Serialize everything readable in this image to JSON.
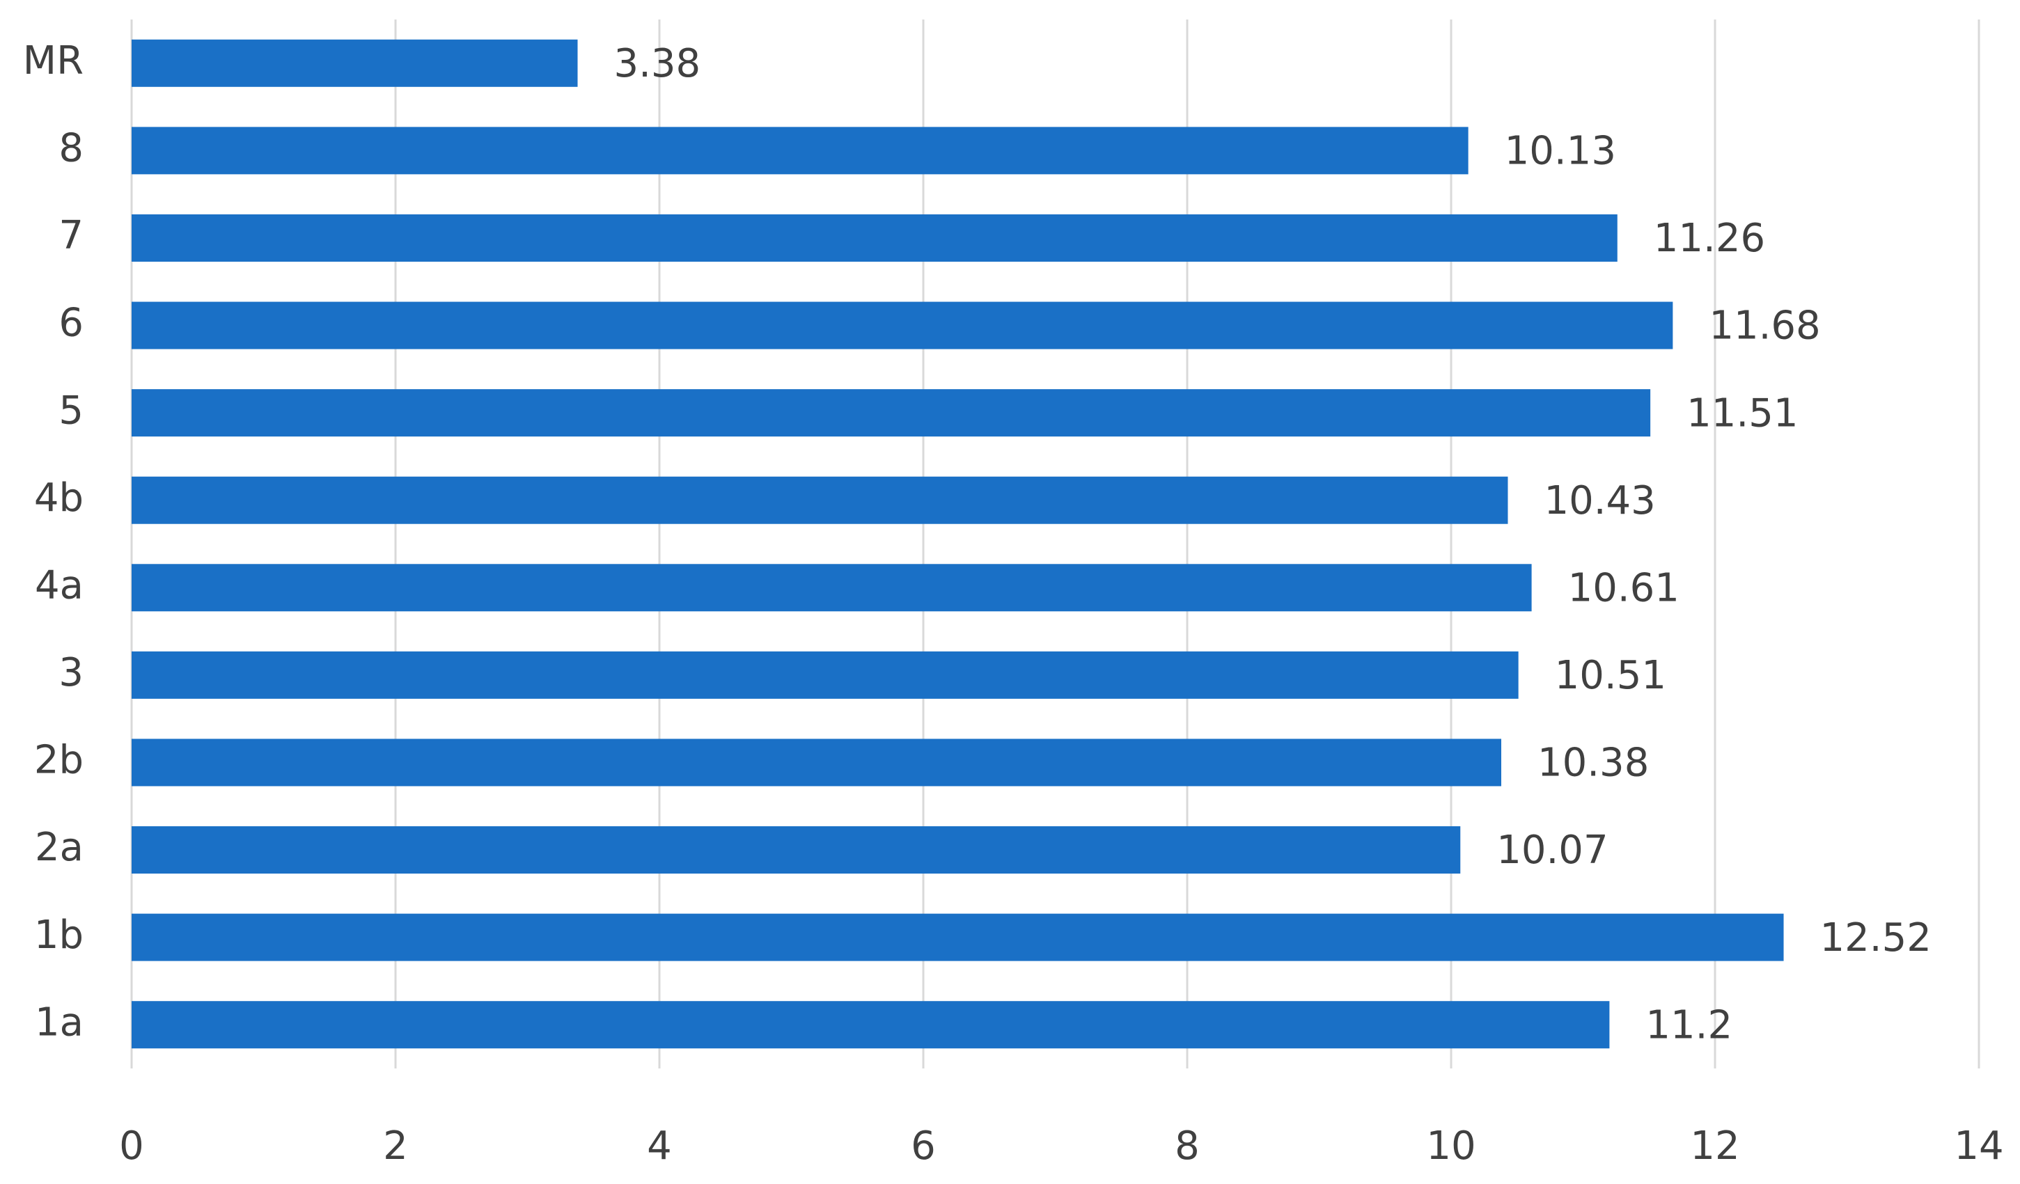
{
  "chart_data": {
    "type": "hbar",
    "categories": [
      "1a",
      "1b",
      "2a",
      "2b",
      "3",
      "4a",
      "4b",
      "5",
      "6",
      "7",
      "8",
      "MR"
    ],
    "values": [
      11.2,
      12.52,
      10.07,
      10.38,
      10.51,
      10.61,
      10.43,
      11.51,
      11.68,
      11.26,
      10.13,
      3.38
    ],
    "color": "#1a70c6",
    "xlim": [
      0,
      14
    ],
    "xticks": [
      0,
      2,
      4,
      6,
      8,
      10,
      12,
      14
    ],
    "grid": true
  }
}
